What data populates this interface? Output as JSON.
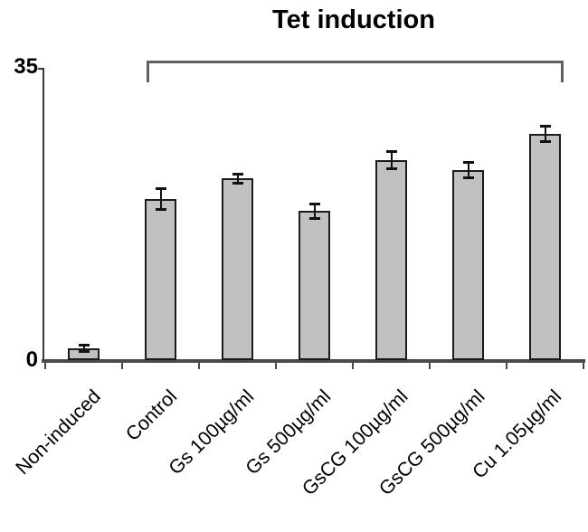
{
  "chart_data": {
    "type": "bar",
    "title": "Tet induction",
    "categories": [
      "Non-induced",
      "Control",
      "Gs 100µg/ml",
      "Gs 500µg/ml",
      "GsCG 100µg/ml",
      "GsCG 500µg/ml",
      "Cu 1.05µg/ml"
    ],
    "values": [
      1.5,
      19.3,
      21.8,
      17.9,
      24.0,
      22.8,
      27.1
    ],
    "errors": [
      0.4,
      1.3,
      0.6,
      0.9,
      1.1,
      1.0,
      1.0
    ],
    "xlabel": "",
    "ylabel": "",
    "ylim": [
      0,
      35
    ],
    "yticks": [
      {
        "value": 0,
        "label": "0"
      },
      {
        "value": 35,
        "label": "35"
      }
    ],
    "grid": false,
    "legend": "none",
    "bracket": {
      "label": "Tet induction",
      "from_category": "Control",
      "to_category": "Cu 1.05µg/ml"
    },
    "colors": {
      "bar_fill": "#c1c1c1",
      "bar_border": "#1c1c1c",
      "axis": "#4a4a4a",
      "bracket": "#5f5f5f",
      "error_bar": "#111111",
      "text": "#000000",
      "background": "#ffffff"
    }
  }
}
